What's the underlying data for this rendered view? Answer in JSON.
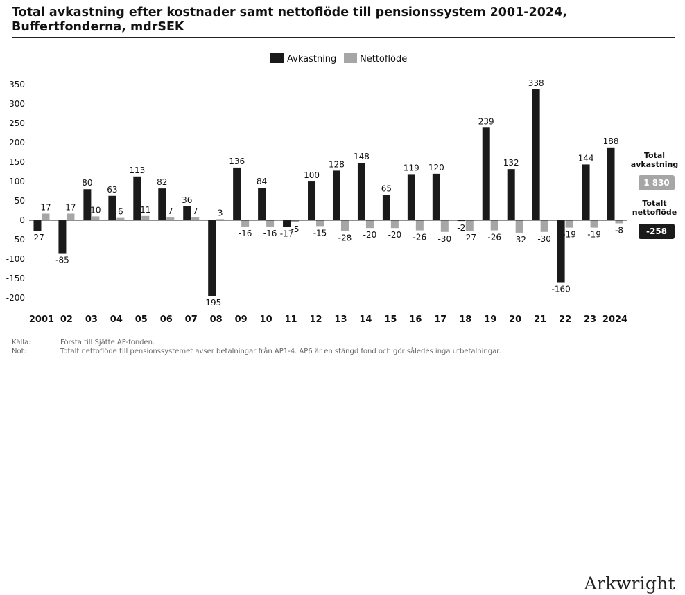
{
  "header": {
    "title_line1": "Total avkastning efter kostnader samt nettoflöde till pensionssystem 2001-2024,",
    "title_line2": "Buffertfonderna, mdrSEK"
  },
  "chart_data": {
    "type": "bar",
    "categories": [
      "2001",
      "02",
      "03",
      "04",
      "05",
      "06",
      "07",
      "08",
      "09",
      "10",
      "11",
      "12",
      "13",
      "14",
      "15",
      "16",
      "17",
      "18",
      "19",
      "20",
      "21",
      "22",
      "23",
      "2024"
    ],
    "series": [
      {
        "name": "Avkastning",
        "color": "#1a1a1a",
        "values": [
          -27,
          -85,
          80,
          63,
          113,
          82,
          36,
          -195,
          136,
          84,
          -17,
          100,
          128,
          148,
          65,
          119,
          120,
          -2,
          239,
          132,
          338,
          -160,
          144,
          188
        ]
      },
      {
        "name": "Nettoflöde",
        "color": "#a6a6a6",
        "values": [
          17,
          17,
          10,
          6,
          11,
          7,
          7,
          3,
          -16,
          -16,
          -5,
          -15,
          -28,
          -20,
          -20,
          -26,
          -30,
          -27,
          -26,
          -32,
          -30,
          -19,
          -19,
          -8
        ]
      }
    ],
    "ylim": [
      -200,
      350
    ],
    "yticks": [
      -200,
      -150,
      -100,
      -50,
      0,
      50,
      100,
      150,
      200,
      250,
      300,
      350
    ],
    "legend_position": "top-center",
    "grid": false
  },
  "summary": {
    "total_return_label_1": "Total",
    "total_return_label_2": "avkastning",
    "total_return_value": "1 830",
    "total_return_color": "#a6a6a6",
    "net_flow_label_1": "Totalt",
    "net_flow_label_2": "nettoflöde",
    "net_flow_value": "-258",
    "net_flow_color": "#1a1a1a"
  },
  "notes": {
    "source_key": "Källa:",
    "source_value": "Första till Sjätte AP-fonden.",
    "note_key": "Not:",
    "note_value": "Totalt nettoflöde till pensionssystemet avser betalningar från AP1-4. AP6 är en stängd fond och gör således inga utbetalningar."
  },
  "brand": "Arkwright"
}
